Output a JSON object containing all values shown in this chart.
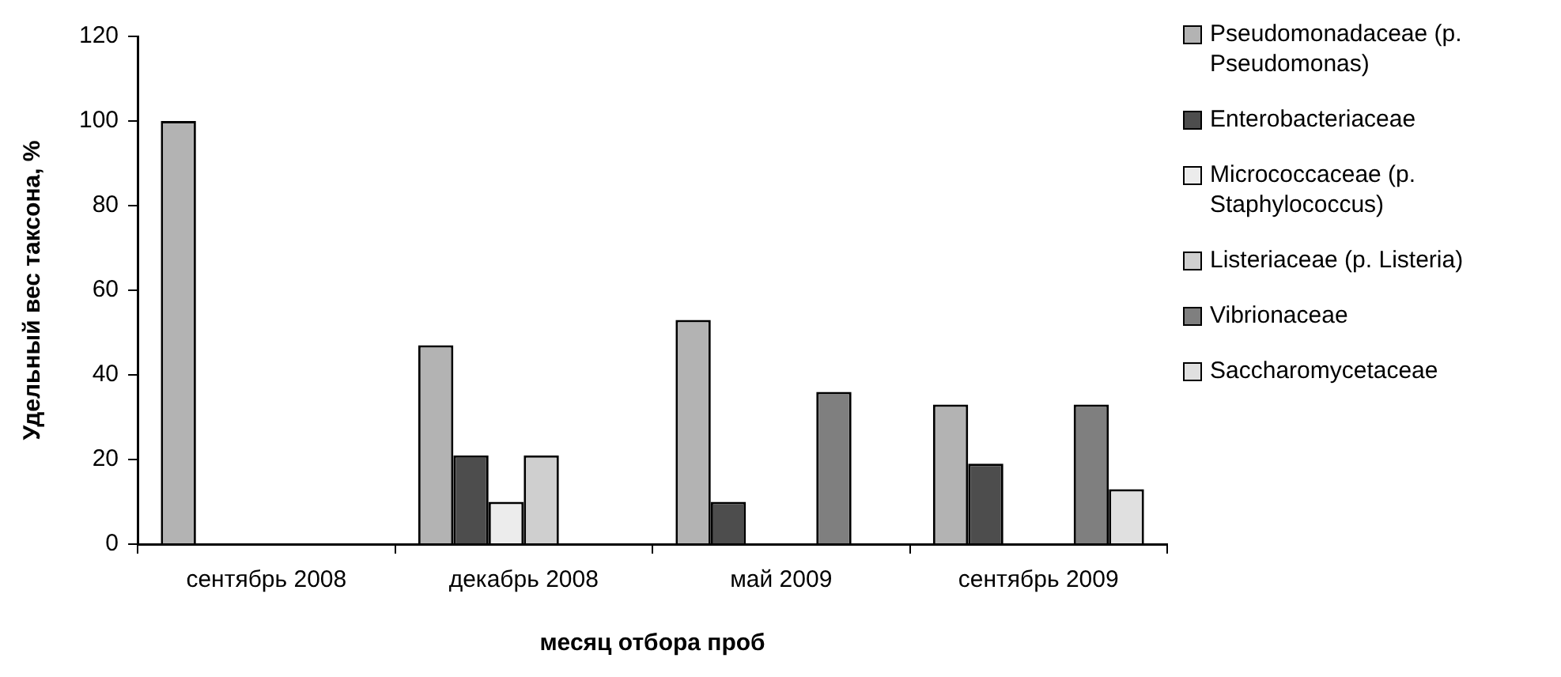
{
  "chart_data": {
    "type": "bar",
    "xlabel": "месяц отбора проб",
    "ylabel": "Удельный вес таксона, %",
    "categories": [
      "сентябрь 2008",
      "декабрь 2008",
      "май 2009",
      "сентябрь 2009"
    ],
    "series": [
      {
        "name": "Pseudomonadaceae (p. Pseudomonas)",
        "color": "#b3b3b3",
        "values": [
          100,
          47,
          53,
          33
        ]
      },
      {
        "name": "Enterobacteriaceae",
        "color": "#4d4d4d",
        "values": [
          null,
          21,
          10,
          19
        ]
      },
      {
        "name": "Micrococcaceae (p. Staphylococcus)",
        "color": "#ececec",
        "values": [
          null,
          10,
          null,
          null
        ]
      },
      {
        "name": "Listeriaceae (p. Listeria)",
        "color": "#cfcfcf",
        "values": [
          null,
          21,
          null,
          null
        ]
      },
      {
        "name": "Vibrionaceae",
        "color": "#7f7f7f",
        "values": [
          null,
          null,
          36,
          33
        ]
      },
      {
        "name": "Saccharomycetaceae",
        "color": "#e0e0e0",
        "values": [
          null,
          null,
          null,
          13
        ]
      }
    ],
    "ylim": [
      0,
      120
    ],
    "yticks": [
      0,
      20,
      40,
      60,
      80,
      100,
      120
    ],
    "grid": false,
    "legend": "right"
  }
}
